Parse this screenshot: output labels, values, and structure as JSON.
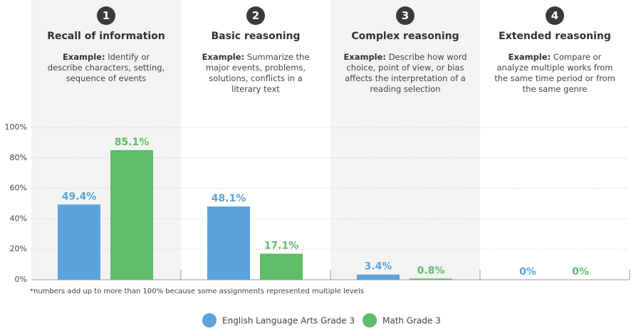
{
  "chart_data": {
    "type": "bar",
    "levels": [
      {
        "number": "1",
        "title": "Recall of information",
        "example": "Identify or describe characters, setting, sequence of events"
      },
      {
        "number": "2",
        "title": "Basic reasoning",
        "example": "Summarize the major events, problems, solutions, conflicts in a literary text"
      },
      {
        "number": "3",
        "title": "Complex reasoning",
        "example": "Describe how word choice, point of view, or bias affects the interpretation of a reading selection"
      },
      {
        "number": "4",
        "title": "Extended reasoning",
        "example": "Compare or analyze multiple works from the same time period or from the same genre"
      }
    ],
    "example_label": "Example:",
    "series": [
      {
        "name": "English Language Arts Grade 3",
        "color": "#5ba3dc",
        "values": [
          49.4,
          48.1,
          3.4,
          0
        ],
        "value_labels": [
          "49.4%",
          "48.1%",
          "3.4%",
          "0%"
        ]
      },
      {
        "name": "Math Grade 3",
        "color": "#5dbd68",
        "values": [
          85.1,
          17.1,
          0.8,
          0
        ],
        "value_labels": [
          "85.1%",
          "17.1%",
          "0.8%",
          "0%"
        ]
      }
    ],
    "ylim": [
      0,
      100
    ],
    "yticks": [
      {
        "value": 0,
        "label": "0%"
      },
      {
        "value": 20,
        "label": "20%"
      },
      {
        "value": 40,
        "label": "40%"
      },
      {
        "value": 60,
        "label": "60%"
      },
      {
        "value": 80,
        "label": "80%"
      },
      {
        "value": 100,
        "label": "100%"
      }
    ],
    "grid": true,
    "note": "*numbers add up to more than 100% because some assignments represented multiple levels"
  }
}
